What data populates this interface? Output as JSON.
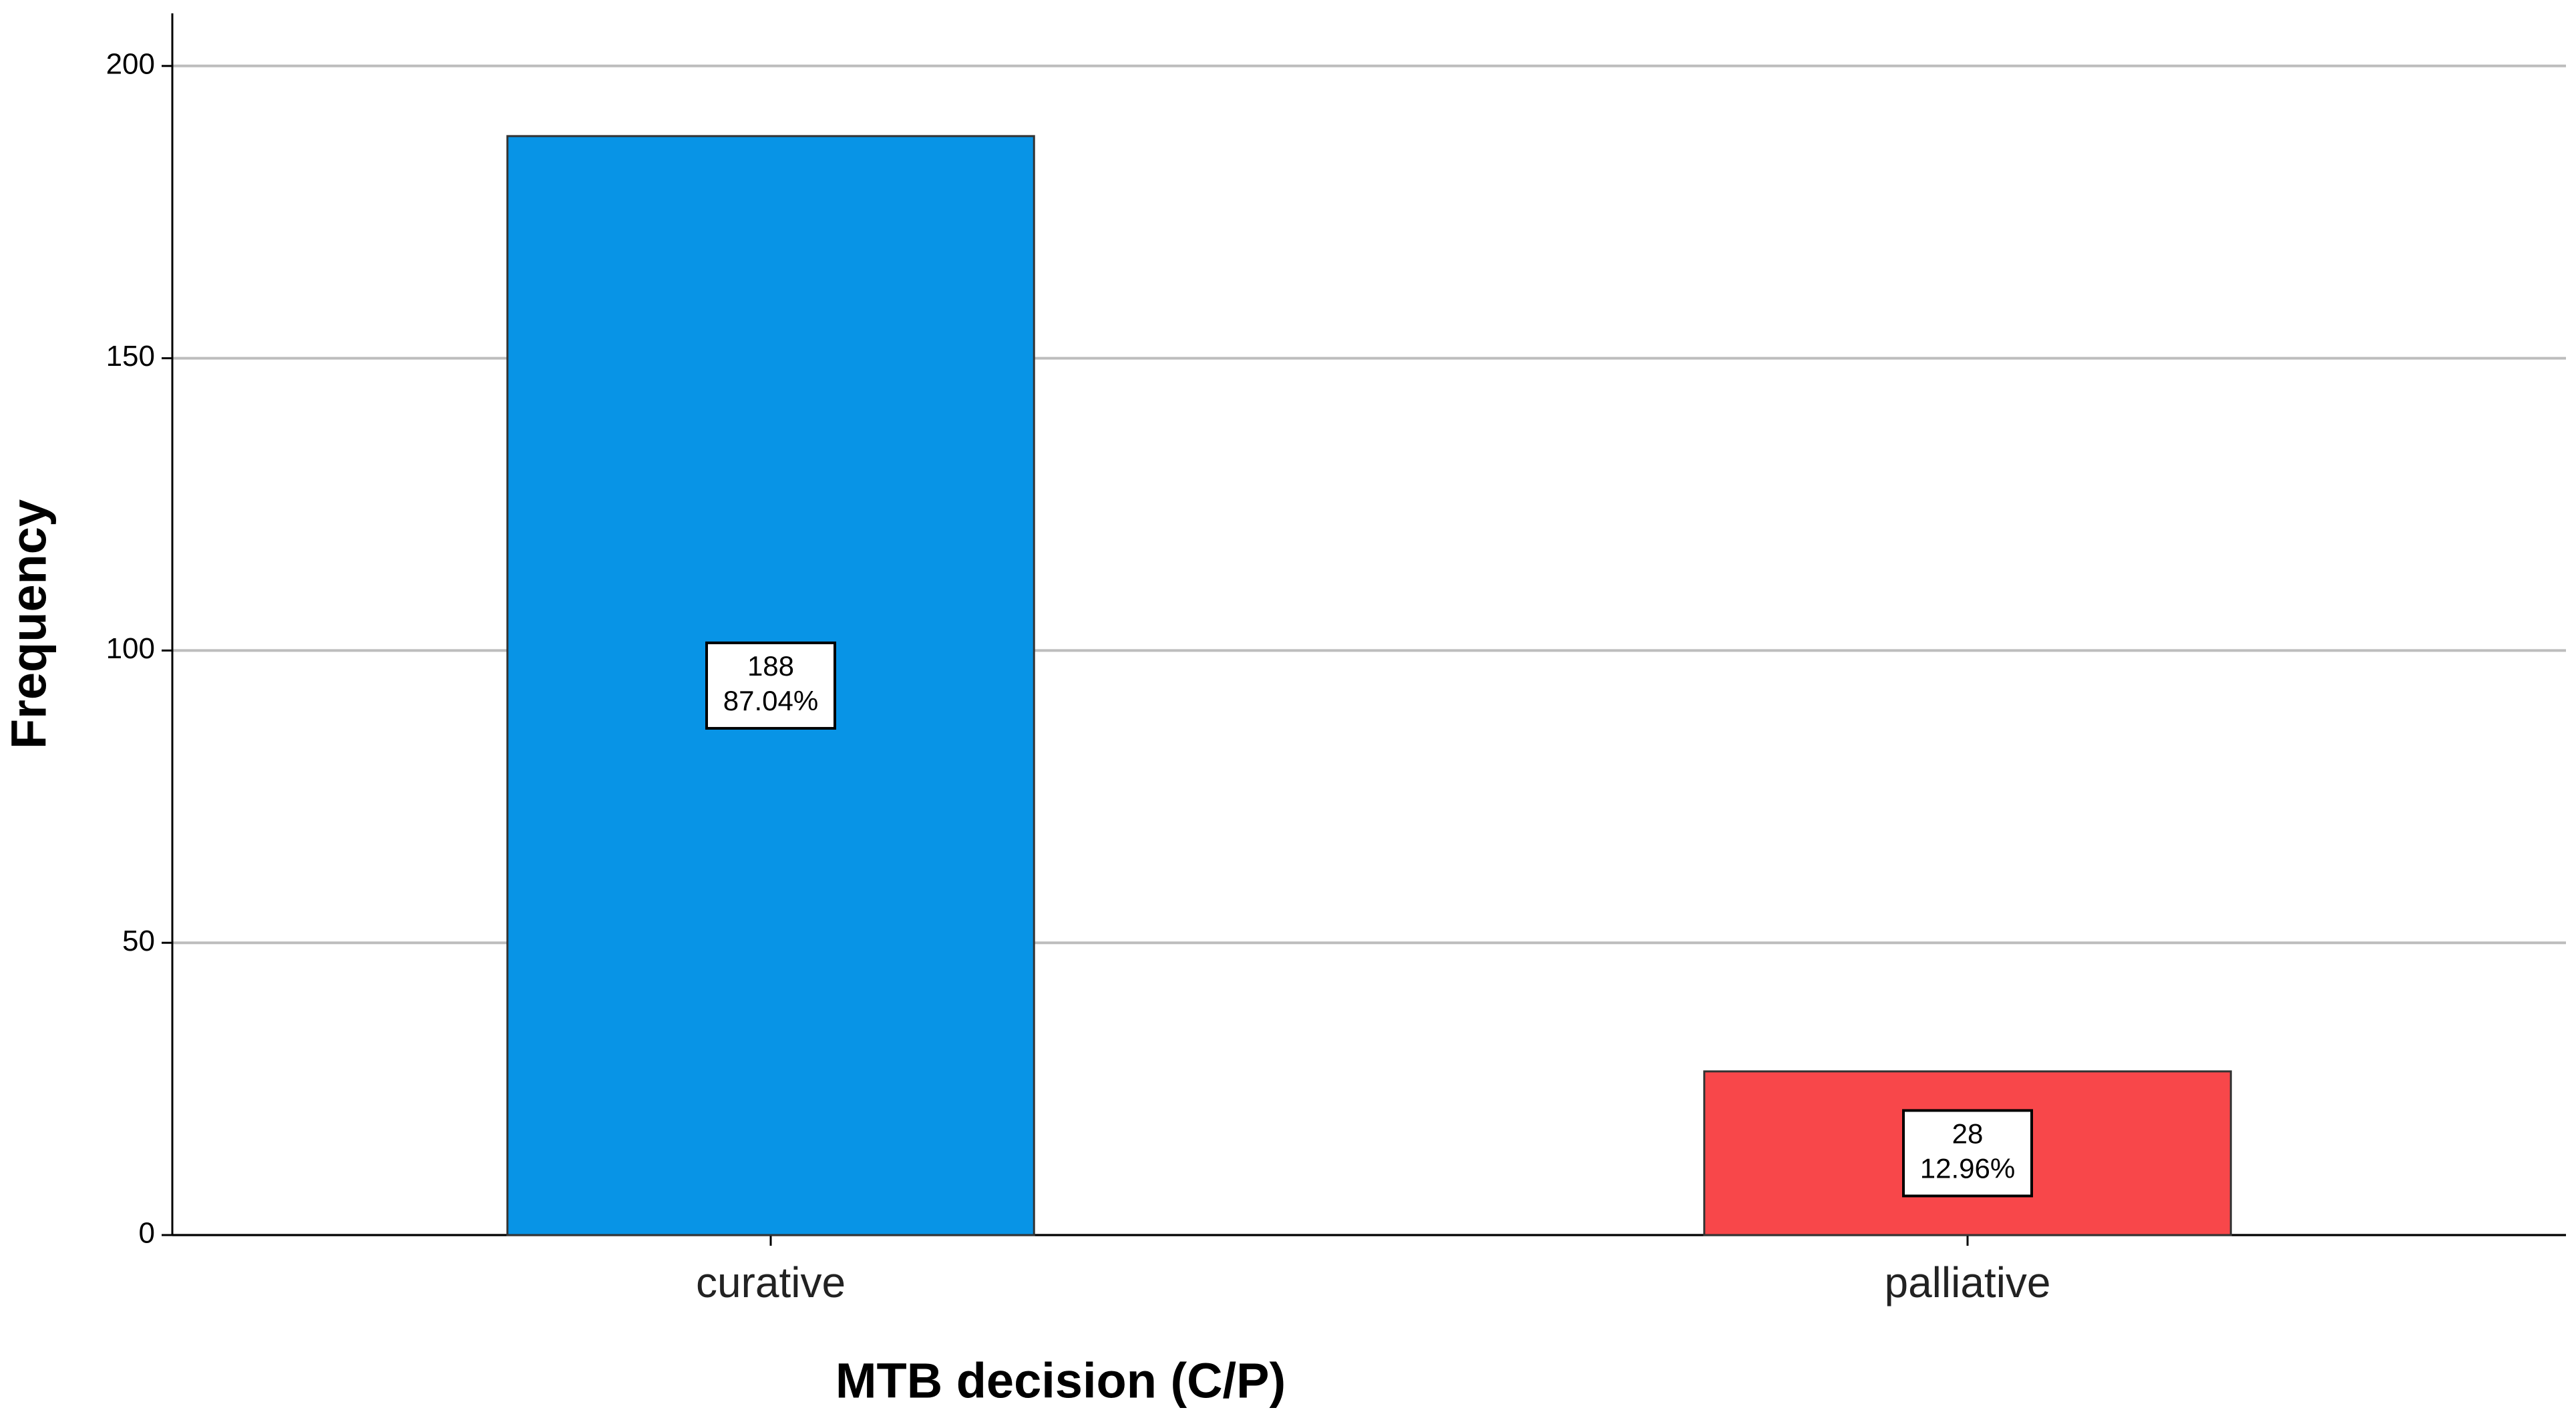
{
  "chart_data": {
    "type": "bar",
    "x_label": "MTB decision (C/P)",
    "y_label": "Frequency",
    "categories": [
      "curative",
      "palliative"
    ],
    "values": [
      188,
      28
    ],
    "percent_values": [
      87.04,
      12.96
    ],
    "percent_labels": [
      "87.04%",
      "12.96%"
    ],
    "colors": [
      "#0894e6",
      "#f8474a"
    ],
    "ylim": [
      0,
      209
    ],
    "yticks": [
      0,
      50,
      100,
      150,
      200
    ],
    "grid": true
  }
}
